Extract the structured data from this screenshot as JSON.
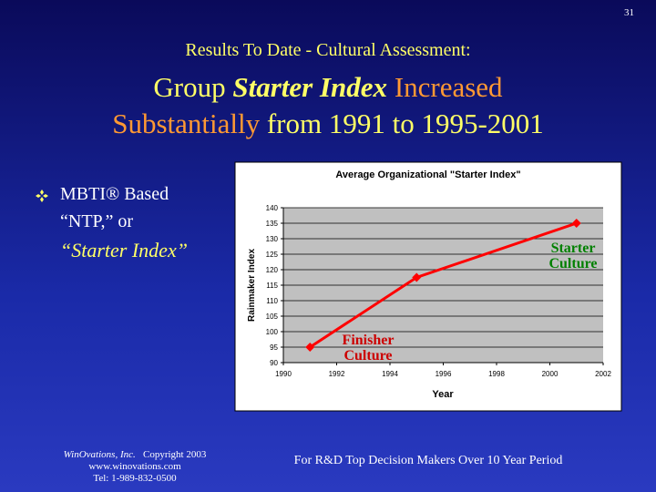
{
  "page_number": "31",
  "heading": {
    "subtitle": "Results To Date - Cultural Assessment:",
    "line1": [
      "Group",
      "Starter Index",
      "Increased"
    ],
    "line2": [
      "Substantially",
      "from 1991 to 1995-2001"
    ]
  },
  "bullet": [
    "MBTI® Based",
    "“NTP,” or",
    "“Starter Index”"
  ],
  "footer": {
    "company": "WinOvations, Inc.",
    "copyright": "Copyright 2003",
    "web": "www.winovations.com",
    "phone": "Tel:  1-989-832-0500"
  },
  "note": "For R&D Top Decision Makers Over 10 Year Period",
  "chart_data": {
    "type": "line",
    "title": "Average Organizational \"Starter Index\"",
    "x_label": "Year",
    "y_label": "Rainmaker Index",
    "series": [
      {
        "name": "Starter Index",
        "color": "#ff0000",
        "x": [
          1991,
          1995,
          2001
        ],
        "values": [
          95,
          117.5,
          135
        ]
      }
    ],
    "xlim": [
      1990,
      2002
    ],
    "xticks": [
      1990,
      1992,
      1994,
      1996,
      1998,
      2000,
      2002
    ],
    "ylim": [
      90,
      140
    ],
    "yticks": [
      90,
      95,
      100,
      105,
      110,
      115,
      120,
      125,
      130,
      135,
      140
    ],
    "grid": true,
    "annotations": [
      {
        "lines": [
          "Finisher",
          "Culture"
        ],
        "color": "#cc0000"
      },
      {
        "lines": [
          "Starter",
          "Culture"
        ],
        "color": "#008000"
      }
    ]
  }
}
